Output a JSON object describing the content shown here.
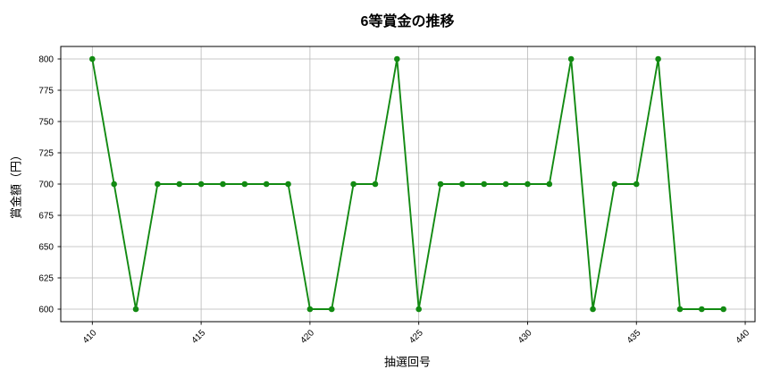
{
  "chart_data": {
    "type": "line",
    "title": "6等賞金の推移",
    "xlabel": "抽選回号",
    "ylabel": "賞金額（円）",
    "x": [
      410,
      411,
      412,
      413,
      414,
      415,
      416,
      417,
      418,
      419,
      420,
      421,
      422,
      423,
      424,
      425,
      426,
      427,
      428,
      429,
      430,
      431,
      432,
      433,
      434,
      435,
      436,
      437,
      438,
      439
    ],
    "y": [
      800,
      700,
      600,
      700,
      700,
      700,
      700,
      700,
      700,
      700,
      600,
      600,
      700,
      700,
      800,
      600,
      700,
      700,
      700,
      700,
      700,
      700,
      800,
      600,
      700,
      700,
      800,
      600,
      600,
      600
    ],
    "xticks": [
      410,
      415,
      420,
      425,
      430,
      435,
      440
    ],
    "yticks": [
      600,
      625,
      650,
      675,
      700,
      725,
      750,
      775,
      800
    ],
    "xlim": [
      408.55,
      440.45
    ],
    "ylim": [
      590,
      810
    ],
    "grid": true,
    "legend_position": "none",
    "line_color": "#128a12",
    "grid_color": "#b8b8b8",
    "spine_color": "#000000",
    "marker": "circle"
  }
}
